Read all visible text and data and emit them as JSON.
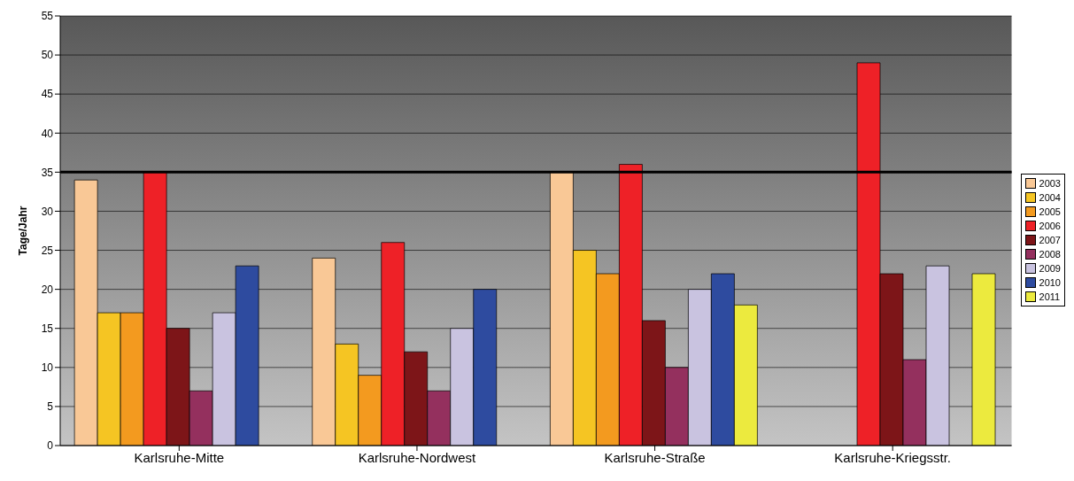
{
  "chart_data": {
    "type": "bar",
    "ylabel": "Tage/Jahr",
    "categories": [
      "Karlsruhe-Mitte",
      "Karlsruhe-Nordwest",
      "Karlsruhe-Straße",
      "Karlsruhe-Kriegsstr."
    ],
    "series": [
      {
        "name": "2003",
        "color": "#f9c896",
        "values": [
          34,
          24,
          35,
          null
        ]
      },
      {
        "name": "2004",
        "color": "#f5c523",
        "values": [
          17,
          13,
          25,
          null
        ]
      },
      {
        "name": "2005",
        "color": "#f39a1f",
        "values": [
          17,
          9,
          22,
          null
        ]
      },
      {
        "name": "2006",
        "color": "#ee2127",
        "values": [
          35,
          26,
          36,
          49
        ]
      },
      {
        "name": "2007",
        "color": "#7d1518",
        "values": [
          15,
          12,
          16,
          22
        ]
      },
      {
        "name": "2008",
        "color": "#94305e",
        "values": [
          7,
          7,
          10,
          11
        ]
      },
      {
        "name": "2009",
        "color": "#c9c3e0",
        "values": [
          17,
          15,
          20,
          23
        ]
      },
      {
        "name": "2010",
        "color": "#2e4b9f",
        "values": [
          23,
          20,
          22,
          null
        ]
      },
      {
        "name": "2011",
        "color": "#ecea3e",
        "values": [
          null,
          null,
          18,
          22
        ]
      }
    ],
    "ylim": [
      0,
      55
    ],
    "yticks": [
      0,
      5,
      10,
      15,
      20,
      25,
      30,
      35,
      40,
      45,
      50,
      55
    ],
    "grid": "y",
    "legend": "right",
    "ref_lines": [
      {
        "axis": "y",
        "value": 35,
        "color": "#000000"
      }
    ]
  }
}
